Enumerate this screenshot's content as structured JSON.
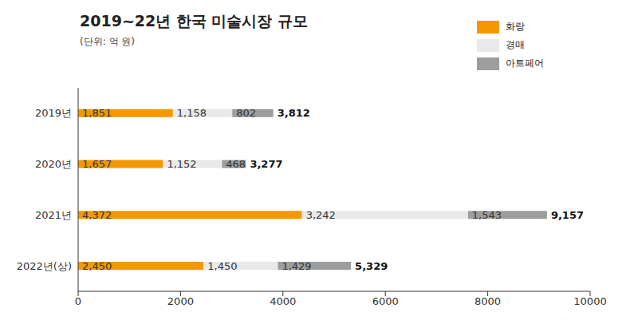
{
  "chart_data": {
    "type": "bar",
    "title": "2019~22년 한국 미술시장 규모",
    "subtitle": "(단위: 억 원)",
    "orientation": "horizontal",
    "stacked": true,
    "data_labels": true,
    "grid": false,
    "legend": "top-right",
    "categories": [
      "2019년",
      "2020년",
      "2021년",
      "2022년(상)"
    ],
    "series": [
      {
        "name": "화랑",
        "color": "#f39800",
        "values": [
          1851,
          1657,
          4372,
          2450
        ],
        "value_labels": [
          "1,851",
          "1,657",
          "4,372",
          "2,450"
        ]
      },
      {
        "name": "경매",
        "color": "#e9e9e9",
        "values": [
          1158,
          1152,
          3242,
          1450
        ],
        "value_labels": [
          "1,158",
          "1,152",
          "3,242",
          "1,450"
        ]
      },
      {
        "name": "아트페어",
        "color": "#9d9d9d",
        "values": [
          802,
          468,
          1543,
          1429
        ],
        "value_labels": [
          "802",
          "468",
          "1,543",
          "1,429"
        ]
      }
    ],
    "totals": {
      "values": [
        3812,
        3277,
        9157,
        5329
      ],
      "value_labels": [
        "3,812",
        "3,277",
        "9,157",
        "5,329"
      ]
    },
    "xlim": [
      0,
      10000
    ],
    "xticks": [
      0,
      2000,
      4000,
      6000,
      8000,
      10000
    ]
  }
}
